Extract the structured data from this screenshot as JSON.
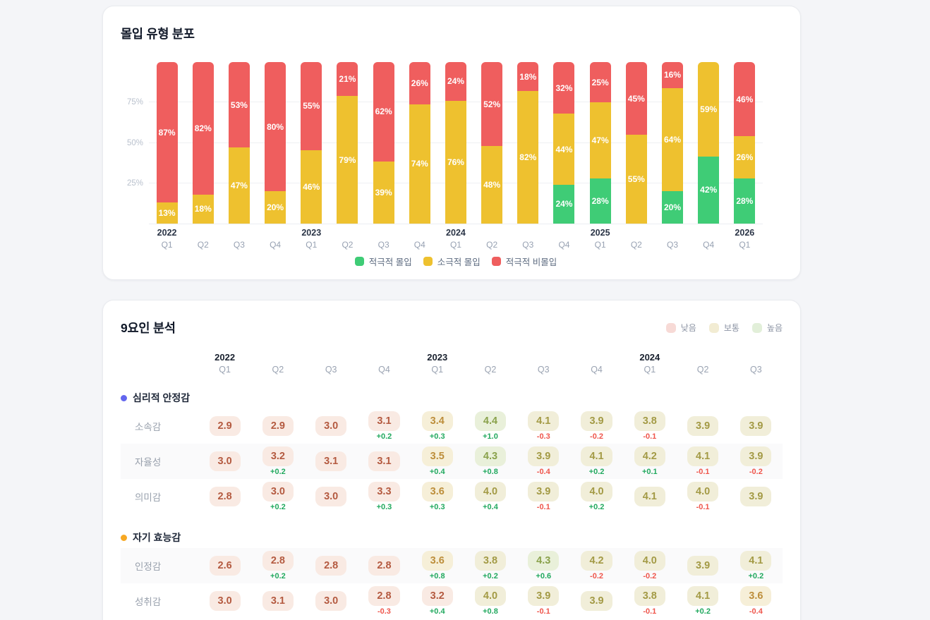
{
  "page": {
    "background": "#f4f5f8"
  },
  "chart_card": {
    "title": "몰입 유형 분포",
    "y_ticks": [
      {
        "label": "25%",
        "pct": 25
      },
      {
        "label": "50%",
        "pct": 50
      },
      {
        "label": "75%",
        "pct": 75
      }
    ],
    "x_axis": [
      {
        "year": "2022",
        "quarter": "Q1"
      },
      {
        "quarter": "Q2"
      },
      {
        "quarter": "Q3"
      },
      {
        "quarter": "Q4"
      },
      {
        "year": "2023",
        "quarter": "Q1"
      },
      {
        "quarter": "Q2"
      },
      {
        "quarter": "Q3"
      },
      {
        "quarter": "Q4"
      },
      {
        "year": "2024",
        "quarter": "Q1"
      },
      {
        "quarter": "Q2"
      },
      {
        "quarter": "Q3"
      },
      {
        "quarter": "Q4"
      },
      {
        "year": "2025",
        "quarter": "Q1"
      },
      {
        "quarter": "Q2"
      },
      {
        "quarter": "Q3"
      },
      {
        "quarter": "Q4"
      },
      {
        "year": "2026",
        "quarter": "Q1"
      }
    ],
    "legend": [
      {
        "label": "적극적 몰입",
        "color": "#3fcc76"
      },
      {
        "label": "소극적 몰입",
        "color": "#eec12f"
      },
      {
        "label": "적극적 비몰입",
        "color": "#ef5e5e"
      }
    ]
  },
  "factor_card": {
    "title": "9요인 분석",
    "legend": [
      {
        "label": "낮음",
        "color": "#f7dad6"
      },
      {
        "label": "보통",
        "color": "#f2ecd3"
      },
      {
        "label": "높음",
        "color": "#e2efd9"
      }
    ],
    "value_tiers": [
      {
        "max": 3.3,
        "bg": "#f9eae3",
        "fg": "#b45a40"
      },
      {
        "max": 3.6,
        "bg": "#f6efd8",
        "fg": "#bd8e3b"
      },
      {
        "max": 4.2,
        "bg": "#f1eed9",
        "fg": "#a39a45"
      },
      {
        "max": 9.9,
        "bg": "#e9f0da",
        "fg": "#8aa24c"
      }
    ],
    "delta_colors": {
      "up": "#22a95f",
      "down": "#ef564c"
    }
  },
  "chart_data": [
    {
      "type": "bar",
      "stacked": true,
      "title": "몰입 유형 분포",
      "unit": "%",
      "ylim": [
        0,
        100
      ],
      "grid": true,
      "legend_position": "bottom",
      "categories": [
        "2022 Q1",
        "2022 Q2",
        "2022 Q3",
        "2022 Q4",
        "2023 Q1",
        "2023 Q2",
        "2023 Q3",
        "2023 Q4",
        "2024 Q1",
        "2024 Q2",
        "2024 Q3",
        "2024 Q4",
        "2025 Q1",
        "2025 Q2",
        "2025 Q3",
        "2025 Q4",
        "2026 Q1"
      ],
      "series": [
        {
          "name": "적극적 몰입",
          "color": "#3fcc76",
          "values": [
            0,
            0,
            0,
            0,
            0,
            0,
            0,
            0,
            0,
            0,
            0,
            24,
            28,
            0,
            20,
            42,
            28
          ]
        },
        {
          "name": "소극적 몰입",
          "color": "#eec12f",
          "values": [
            13,
            18,
            47,
            20,
            46,
            79,
            39,
            74,
            76,
            48,
            82,
            44,
            47,
            55,
            64,
            59,
            26
          ]
        },
        {
          "name": "적극적 비몰입",
          "color": "#ef5e5e",
          "values": [
            87,
            82,
            53,
            80,
            55,
            21,
            62,
            26,
            24,
            52,
            18,
            32,
            25,
            45,
            16,
            0,
            46
          ]
        }
      ]
    },
    {
      "type": "table",
      "title": "9요인 분석",
      "columns": [
        {
          "year": "2022",
          "quarter": "Q1"
        },
        {
          "quarter": "Q2"
        },
        {
          "quarter": "Q3"
        },
        {
          "quarter": "Q4"
        },
        {
          "year": "2023",
          "quarter": "Q1"
        },
        {
          "quarter": "Q2"
        },
        {
          "quarter": "Q3"
        },
        {
          "quarter": "Q4"
        },
        {
          "year": "2024",
          "quarter": "Q1"
        },
        {
          "quarter": "Q2"
        },
        {
          "quarter": "Q3"
        }
      ],
      "sections": [
        {
          "name": "심리적 안정감",
          "color": "#6366ee",
          "rows": [
            {
              "label": "소속감",
              "values": [
                "2.9",
                "2.9",
                "3.0",
                "3.1",
                "3.4",
                "4.4",
                "4.1",
                "3.9",
                "3.8",
                "3.9",
                "3.9"
              ],
              "deltas": [
                "",
                "",
                "",
                "+0.2",
                "+0.3",
                "+1.0",
                "-0.3",
                "-0.2",
                "-0.1",
                "",
                ""
              ]
            },
            {
              "label": "자율성",
              "values": [
                "3.0",
                "3.2",
                "3.1",
                "3.1",
                "3.5",
                "4.3",
                "3.9",
                "4.1",
                "4.2",
                "4.1",
                "3.9"
              ],
              "deltas": [
                "",
                "+0.2",
                "",
                "",
                "+0.4",
                "+0.8",
                "-0.4",
                "+0.2",
                "+0.1",
                "-0.1",
                "-0.2"
              ]
            },
            {
              "label": "의미감",
              "values": [
                "2.8",
                "3.0",
                "3.0",
                "3.3",
                "3.6",
                "4.0",
                "3.9",
                "4.0",
                "4.1",
                "4.0",
                "3.9"
              ],
              "deltas": [
                "",
                "+0.2",
                "",
                "+0.3",
                "+0.3",
                "+0.4",
                "-0.1",
                "+0.2",
                "",
                "-0.1",
                ""
              ]
            }
          ]
        },
        {
          "name": "자기 효능감",
          "color": "#f7a823",
          "rows": [
            {
              "label": "인정감",
              "values": [
                "2.6",
                "2.8",
                "2.8",
                "2.8",
                "3.6",
                "3.8",
                "4.3",
                "4.2",
                "4.0",
                "3.9",
                "4.1"
              ],
              "deltas": [
                "",
                "+0.2",
                "",
                "",
                "+0.8",
                "+0.2",
                "+0.6",
                "-0.2",
                "-0.2",
                "",
                "+0.2"
              ]
            },
            {
              "label": "성취감",
              "values": [
                "3.0",
                "3.1",
                "3.0",
                "2.8",
                "3.2",
                "4.0",
                "3.9",
                "3.9",
                "3.8",
                "4.1",
                "3.6"
              ],
              "deltas": [
                "",
                "",
                "",
                "-0.3",
                "+0.4",
                "+0.8",
                "-0.1",
                "",
                "-0.1",
                "+0.2",
                "-0.4"
              ]
            }
          ]
        }
      ]
    }
  ]
}
